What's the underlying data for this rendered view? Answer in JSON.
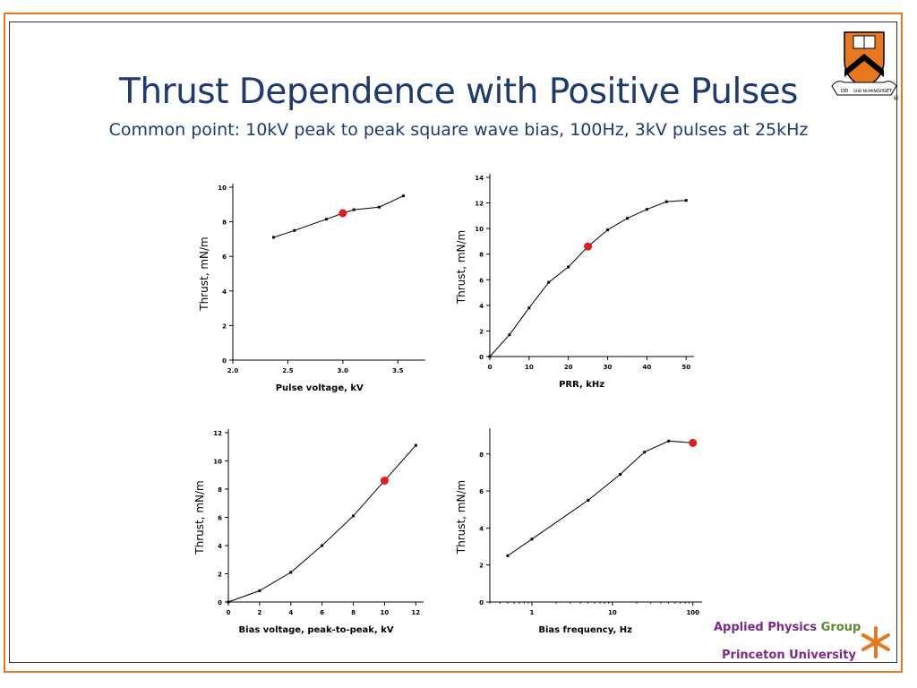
{
  "header": {
    "title": "Thrust Dependence with Positive Pulses",
    "subtitle": "Common point: 10kV peak to peak square wave bias, 100Hz, 3kV pulses at 25kHz"
  },
  "logo": {
    "shield_text_left": "DEI",
    "shield_text_mid": "SUB NUMINE",
    "shield_text_right": "VIGET",
    "registered": "®"
  },
  "footer": {
    "group_part1": "Applied Physics",
    "group_part2": "Group",
    "university": "Princeton University"
  },
  "colors": {
    "title": "#1f3a6e",
    "frame": "#e87722",
    "highlight": "#e31b1b",
    "footer_purple": "#7a2a8a",
    "footer_green": "#5a8a2a"
  },
  "chart_data": [
    {
      "type": "line",
      "xlabel": "Pulse voltage, kV",
      "ylabel": "Thrust, mN/m",
      "xlim": [
        2.0,
        3.75
      ],
      "ylim": [
        0,
        10
      ],
      "xticks": [
        "2.0",
        "2.5",
        "3.0",
        "3.5"
      ],
      "yticks": [
        "0",
        "2",
        "4",
        "6",
        "8",
        "10"
      ],
      "x": [
        2.37,
        2.56,
        2.85,
        3.0,
        3.1,
        3.33,
        3.55
      ],
      "y": [
        7.1,
        7.5,
        8.15,
        8.5,
        8.7,
        8.85,
        9.5
      ],
      "highlight": {
        "x": 3.0,
        "y": 8.5
      }
    },
    {
      "type": "line",
      "xlabel": "PRR, kHz",
      "ylabel": "Thrust, mN/m",
      "xlim": [
        0,
        52
      ],
      "ylim": [
        0,
        14
      ],
      "xticks": [
        "0",
        "10",
        "20",
        "30",
        "40",
        "50"
      ],
      "yticks": [
        "0",
        "2",
        "4",
        "6",
        "8",
        "10",
        "12",
        "14"
      ],
      "x": [
        0,
        5,
        10,
        15,
        20,
        25,
        30,
        35,
        40,
        45,
        50
      ],
      "y": [
        0,
        1.7,
        3.8,
        5.8,
        7.0,
        8.6,
        9.9,
        10.8,
        11.5,
        12.1,
        12.2
      ],
      "highlight": {
        "x": 25,
        "y": 8.6
      }
    },
    {
      "type": "line",
      "xlabel": "Bias voltage, peak-to-peak, kV",
      "ylabel": "Thrust, mN/m",
      "xlim": [
        0,
        12.5
      ],
      "ylim": [
        0,
        12
      ],
      "xticks": [
        "0",
        "2",
        "4",
        "6",
        "8",
        "10",
        "12"
      ],
      "yticks": [
        "0",
        "2",
        "4",
        "6",
        "8",
        "10",
        "12"
      ],
      "x": [
        0,
        2,
        4,
        6,
        8,
        10,
        12
      ],
      "y": [
        0,
        0.8,
        2.1,
        4.0,
        6.1,
        8.6,
        11.1
      ],
      "highlight": {
        "x": 10,
        "y": 8.6
      }
    },
    {
      "type": "line",
      "xscale": "log",
      "xlabel": "Bias frequency, Hz",
      "ylabel": "Thrust, mN/m",
      "xlim": [
        0.3,
        130
      ],
      "ylim": [
        0,
        9.2
      ],
      "xticks": [
        "1",
        "10",
        "100"
      ],
      "yticks": [
        "0",
        "2",
        "4",
        "6",
        "8"
      ],
      "x": [
        0.5,
        1,
        5,
        12.5,
        25,
        50,
        100
      ],
      "y": [
        2.5,
        3.4,
        5.5,
        6.9,
        8.1,
        8.7,
        8.6
      ],
      "highlight": {
        "x": 100,
        "y": 8.6
      }
    }
  ]
}
